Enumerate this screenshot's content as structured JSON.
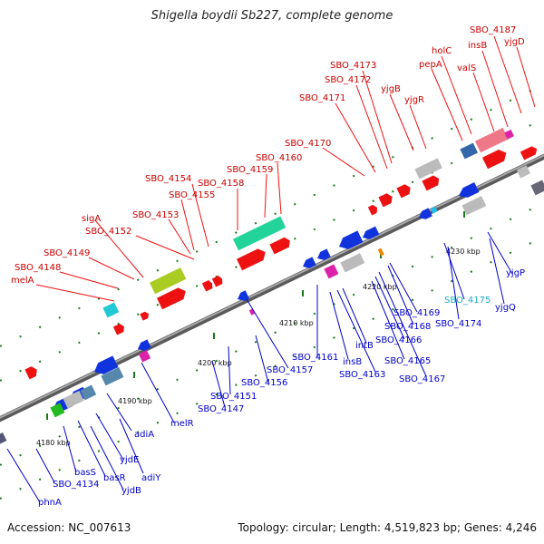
{
  "title": "Shigella boydii Sb227, complete genome",
  "footer": {
    "accession": "Accession: NC_007613",
    "topology": "Topology: circular; Length: 4,519,823 bp; Genes: 4,246"
  },
  "colors": {
    "forward_label": "#cc0000",
    "reverse_label": "#0000cc",
    "rna_label": "#22aacc",
    "backbone": "#8a8a8a"
  },
  "scale_labels": [
    "4180 kbp",
    "4190 kbp",
    "4200 kbp",
    "4210 kbp",
    "4220 kbp",
    "4230 kbp"
  ],
  "genes_top": [
    "SBO_4187",
    "yjgD",
    "insB",
    "holC",
    "valS",
    "pepA",
    "SBO_4173",
    "SBO_4172",
    "yjgB",
    "yjgR",
    "SBO_4171",
    "SBO_4170",
    "SBO_4160",
    "SBO_4159",
    "SBO_4158",
    "SBO_4154",
    "SBO_4155",
    "SBO_4153",
    "sigA",
    "SBO_4152",
    "SBO_4149",
    "SBO_4148",
    "melA"
  ],
  "genes_bottom": [
    "yjgP",
    "SBO_4175",
    "yjgQ",
    "SBO_4174",
    "SBO_4169",
    "SBO_4168",
    "SBO_4166",
    "SBO_4165",
    "SBO_4167",
    "intB",
    "insB",
    "SBO_4163",
    "SBO_4161",
    "SBO_4157",
    "SBO_4156",
    "SBO_4151",
    "SBO_4147",
    "melR",
    "adiA",
    "adiY",
    "yjdE",
    "basR",
    "yjdB",
    "basS",
    "SBO_4134",
    "phnA"
  ]
}
